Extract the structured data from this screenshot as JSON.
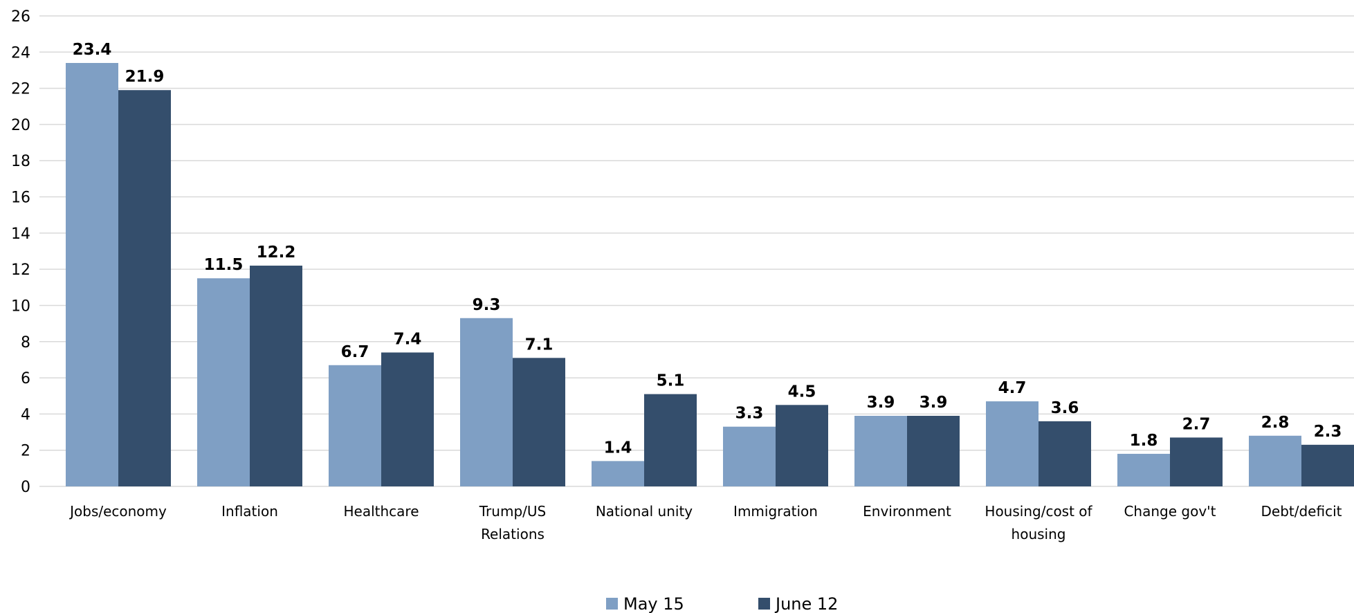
{
  "chart_data": {
    "type": "bar",
    "categories": [
      "Jobs/economy",
      "Inflation",
      "Healthcare",
      "Trump/US Relations",
      "National unity",
      "Immigration",
      "Environment",
      "Housing/cost of housing",
      "Change gov't",
      "Debt/deficit"
    ],
    "category_lines": [
      [
        "Jobs/economy"
      ],
      [
        "Inflation"
      ],
      [
        "Healthcare"
      ],
      [
        "Trump/US",
        "Relations"
      ],
      [
        "National unity"
      ],
      [
        "Immigration"
      ],
      [
        "Environment"
      ],
      [
        "Housing/cost of",
        "housing"
      ],
      [
        "Change gov't"
      ],
      [
        "Debt/deficit"
      ]
    ],
    "series": [
      {
        "name": "May 15",
        "color": "#7f9fc4",
        "values": [
          23.4,
          11.5,
          6.7,
          9.3,
          1.4,
          3.3,
          3.9,
          4.7,
          1.8,
          2.8
        ]
      },
      {
        "name": "June 12",
        "color": "#344e6c",
        "values": [
          21.9,
          12.2,
          7.4,
          7.1,
          5.1,
          4.5,
          3.9,
          3.6,
          2.7,
          2.3
        ]
      }
    ],
    "yticks": [
      0,
      2,
      4,
      6,
      8,
      10,
      12,
      14,
      16,
      18,
      20,
      22,
      24,
      26
    ],
    "ylim": [
      0,
      26
    ],
    "grid": true,
    "legend": "bottom-center",
    "data_labels": true,
    "title": "",
    "xlabel": "",
    "ylabel": ""
  }
}
